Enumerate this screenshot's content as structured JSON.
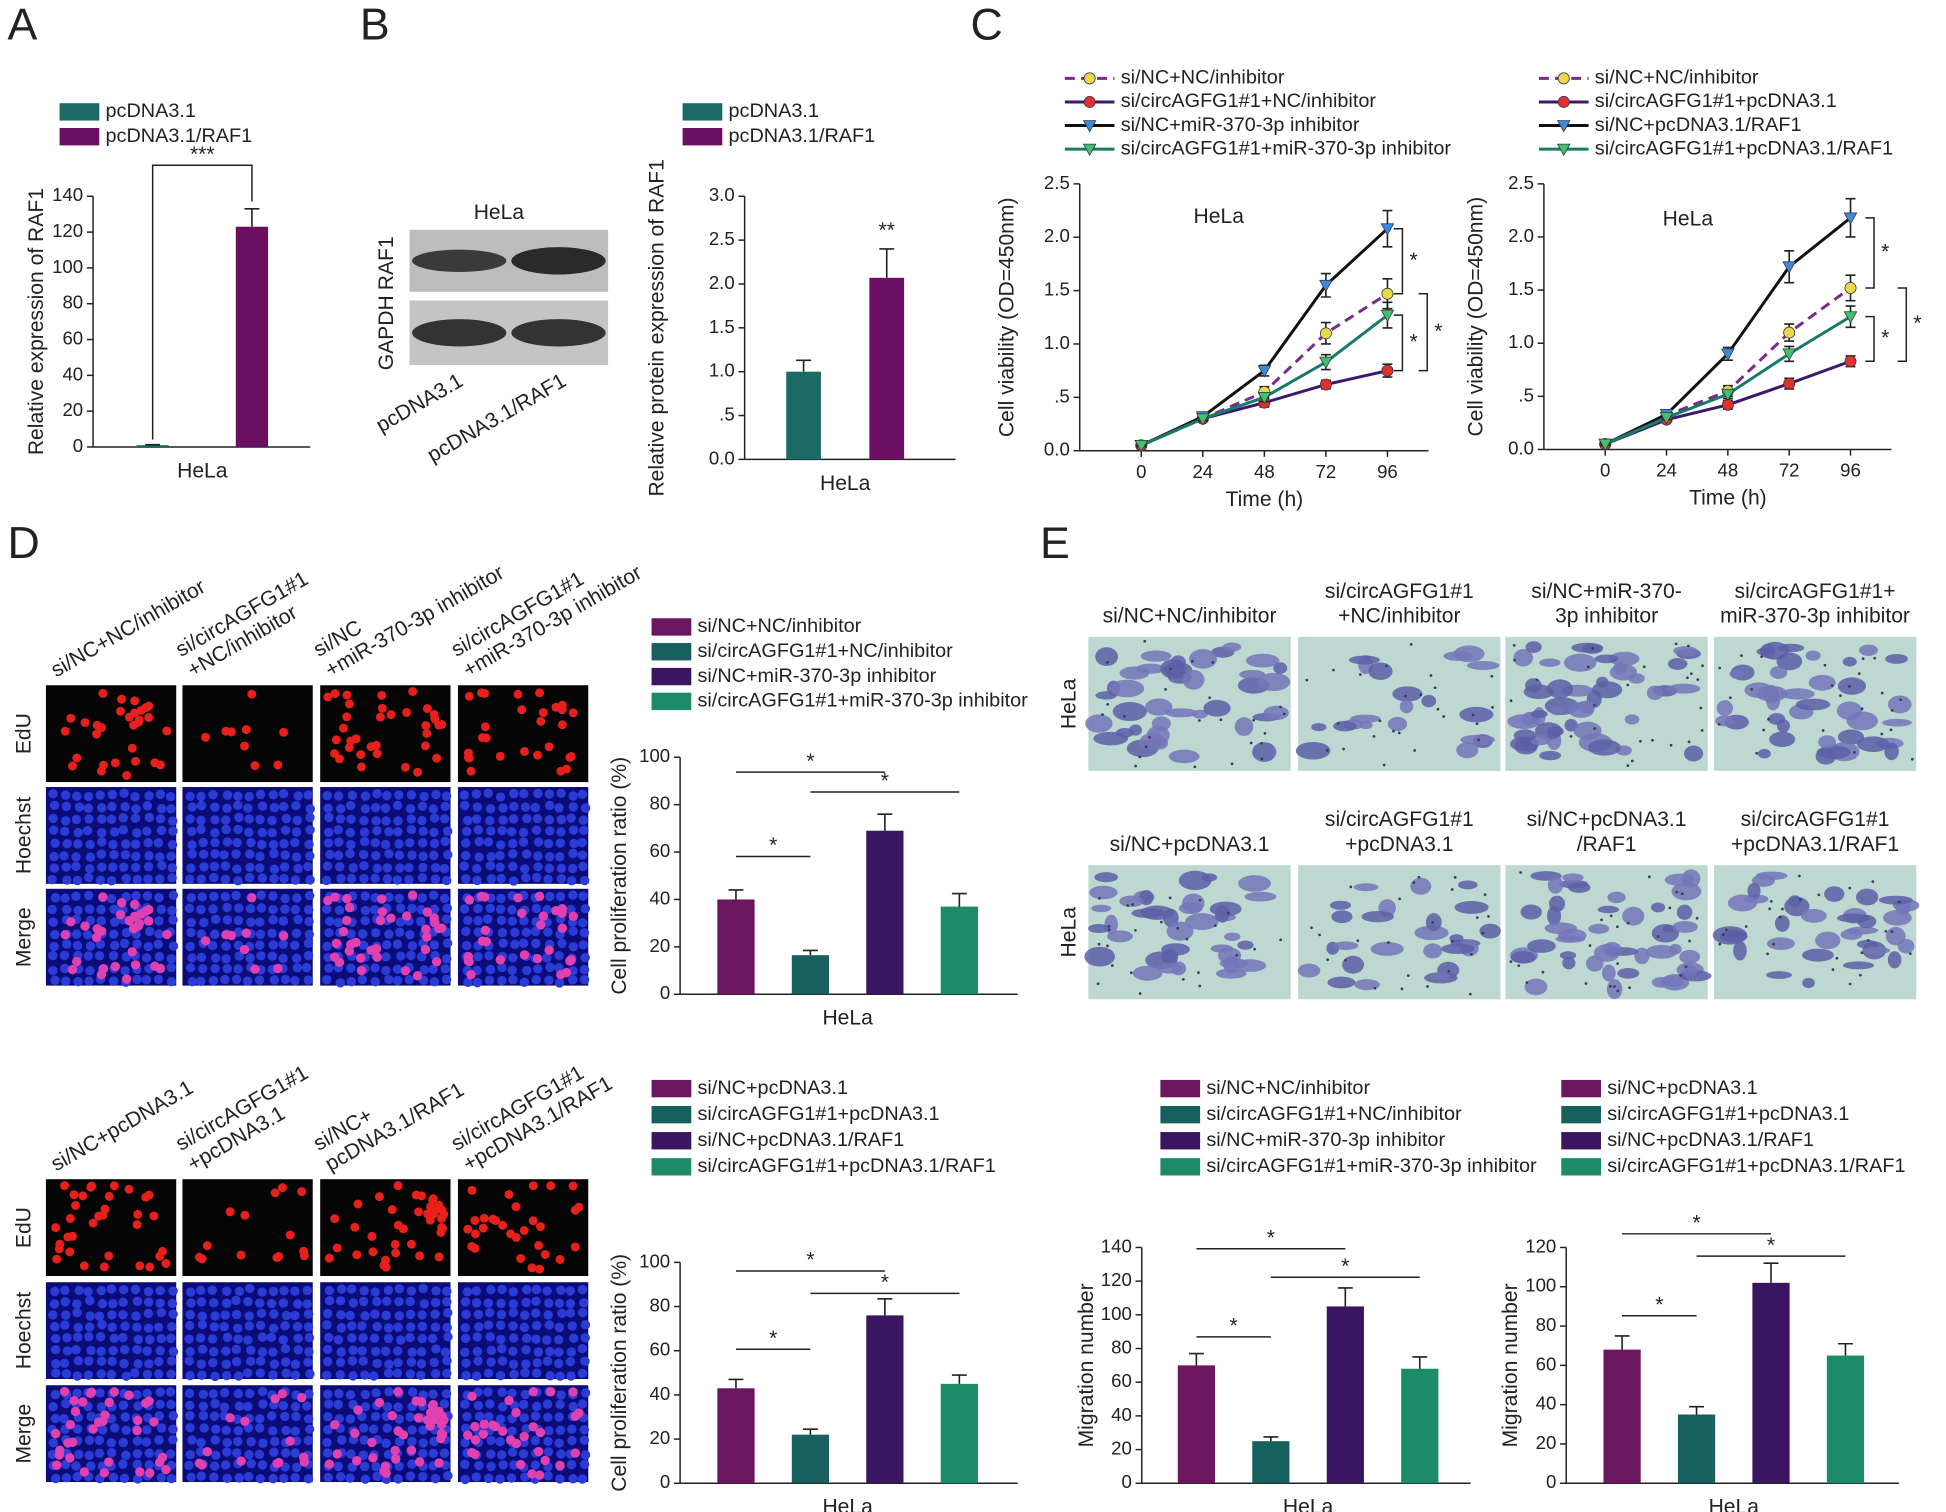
{
  "figure": {
    "panel_labels": [
      "A",
      "B",
      "C",
      "D",
      "E"
    ],
    "blot": {
      "cell_line": "HeLa",
      "rows": [
        "RAF1",
        "GAPDH"
      ],
      "lanes": [
        "pcDNA3.1",
        "pcDNA3.1/RAF1"
      ]
    },
    "edu": {
      "channels": [
        "EdU",
        "Hoechst",
        "Merge"
      ],
      "groups": [
        [
          [
            "si/NC+NC/inhibitor"
          ],
          [
            "si/circAGFG1#1",
            "+NC/inhibitor"
          ],
          [
            "si/NC",
            "+miR-370-3p inhibitor"
          ],
          [
            "si/circAGFG1#1",
            "+miR-370-3p inhibitor"
          ]
        ],
        [
          [
            "si/NC+pcDNA3.1"
          ],
          [
            "si/circAGFG1#1",
            "+pcDNA3.1"
          ],
          [
            "si/NC+",
            "pcDNA3.1/RAF1"
          ],
          [
            "si/circAGFG1#1",
            "+pcDNA3.1/RAF1"
          ]
        ]
      ]
    },
    "transwell": {
      "cell_line": "HeLa",
      "groups": [
        [
          [
            "si/NC+NC/inhibitor"
          ],
          [
            "si/circAGFG1#1",
            "+NC/inhibitor"
          ],
          [
            "si/NC+miR-370-",
            "3p inhibitor"
          ],
          [
            "si/circAGFG1#1+",
            "miR-370-3p inhibitor"
          ]
        ],
        [
          [
            "si/NC+pcDNA3.1"
          ],
          [
            "si/circAGFG1#1",
            "+pcDNA3.1"
          ],
          [
            "si/NC+pcDNA3.1",
            "/RAF1"
          ],
          [
            "si/circAGFG1#1",
            "+pcDNA3.1/RAF1"
          ]
        ]
      ]
    }
  },
  "chart_data": [
    {
      "type": "bar",
      "ylabel": "Relative expression of RAF1",
      "categories": [
        "HeLa"
      ],
      "series": [
        {
          "name": "pcDNA3.1",
          "color": "#1b6a66",
          "values": [
            1
          ],
          "errors": [
            0.3
          ]
        },
        {
          "name": "pcDNA3.1/RAF1",
          "color": "#6b0f62",
          "values": [
            123
          ],
          "errors": [
            10
          ]
        }
      ],
      "ylim": [
        0,
        140
      ],
      "yticks": [
        0,
        20,
        40,
        60,
        80,
        100,
        120,
        140
      ],
      "significance": [
        {
          "pair": [
            0,
            1
          ],
          "label": "***"
        }
      ]
    },
    {
      "type": "bar",
      "ylabel": "Relative protein expression of RAF1",
      "categories": [
        "HeLa"
      ],
      "series": [
        {
          "name": "pcDNA3.1",
          "color": "#1b6a66",
          "values": [
            1.0
          ],
          "errors": [
            0.13
          ]
        },
        {
          "name": "pcDNA3.1/RAF1",
          "color": "#6b0f62",
          "values": [
            2.07
          ],
          "errors": [
            0.33
          ]
        }
      ],
      "ylim": [
        0,
        3
      ],
      "yticks": [
        {
          "value": 0,
          "label": "0.0"
        },
        {
          "value": 0.5,
          "label": ".5"
        },
        {
          "value": 1,
          "label": "1.0"
        },
        1.5,
        {
          "value": 2,
          "label": "2.0"
        },
        2.5,
        {
          "value": 3,
          "label": "3.0"
        }
      ],
      "significance": [
        {
          "series": 1,
          "label": "**"
        }
      ]
    },
    {
      "type": "line",
      "annotation": "HeLa",
      "xlabel": "Time (h)",
      "ylabel": "Cell viability (OD=450nm)",
      "x": [
        0,
        24,
        48,
        72,
        96
      ],
      "xlim": [
        -24,
        112
      ],
      "xticks": [
        0,
        24,
        48,
        72,
        96
      ],
      "ylim": [
        0,
        2.5
      ],
      "yticks": [
        {
          "value": 0,
          "label": "0.0"
        },
        {
          "value": 0.5,
          "label": ".5"
        },
        {
          "value": 1,
          "label": "1.0"
        },
        1.5,
        {
          "value": 2,
          "label": "2.0"
        },
        2.5
      ],
      "series": [
        {
          "name": "si/NC+NC/inhibitor",
          "color": "#7a2a8a",
          "marker_color": "#e8d84a",
          "marker": "circle",
          "dashed": true,
          "values": [
            0.05,
            0.3,
            0.55,
            1.1,
            1.47
          ],
          "errors": [
            0.01,
            0.02,
            0.05,
            0.1,
            0.14
          ]
        },
        {
          "name": "si/circAGFG1#1+NC/inhibitor",
          "color": "#3a1a6e",
          "marker_color": "#e03030",
          "marker": "circle",
          "dashed": false,
          "values": [
            0.05,
            0.3,
            0.45,
            0.62,
            0.75
          ],
          "errors": [
            0.01,
            0.02,
            0.04,
            0.04,
            0.06
          ]
        },
        {
          "name": "si/NC+miR-370-3p inhibitor",
          "color": "#111111",
          "marker_color": "#3a8ae0",
          "marker": "triangle-down",
          "dashed": false,
          "values": [
            0.05,
            0.32,
            0.75,
            1.55,
            2.08
          ],
          "errors": [
            0.01,
            0.02,
            0.05,
            0.11,
            0.17
          ]
        },
        {
          "name": "si/circAGFG1#1+miR-370-3p inhibitor",
          "color": "#1a7a6a",
          "marker_color": "#40c070",
          "marker": "triangle-down",
          "dashed": false,
          "values": [
            0.05,
            0.3,
            0.5,
            0.83,
            1.27
          ],
          "errors": [
            0.01,
            0.02,
            0.04,
            0.07,
            0.12
          ]
        }
      ],
      "significance": [
        {
          "pair": [
            2,
            0
          ],
          "label": "*"
        },
        {
          "pair": [
            3,
            1
          ],
          "label": "*"
        },
        {
          "pair": [
            0,
            1
          ],
          "label": "*"
        }
      ]
    },
    {
      "type": "line",
      "annotation": "HeLa",
      "xlabel": "Time (h)",
      "ylabel": "Cell viability (OD=450nm)",
      "x": [
        0,
        24,
        48,
        72,
        96
      ],
      "xlim": [
        -24,
        112
      ],
      "xticks": [
        0,
        24,
        48,
        72,
        96
      ],
      "ylim": [
        0,
        2.5
      ],
      "yticks": [
        {
          "value": 0,
          "label": "0.0"
        },
        {
          "value": 0.5,
          "label": ".5"
        },
        {
          "value": 1,
          "label": "1.0"
        },
        1.5,
        {
          "value": 2,
          "label": "2.0"
        },
        2.5
      ],
      "series": [
        {
          "name": "si/NC+NC/inhibitor",
          "color": "#7a2a8a",
          "marker_color": "#e8d84a",
          "marker": "circle",
          "dashed": true,
          "values": [
            0.05,
            0.32,
            0.55,
            1.1,
            1.52
          ],
          "errors": [
            0.01,
            0.02,
            0.05,
            0.08,
            0.12
          ]
        },
        {
          "name": "si/circAGFG1#1+pcDNA3.1",
          "color": "#3a1a6e",
          "marker_color": "#e03030",
          "marker": "circle",
          "dashed": false,
          "values": [
            0.05,
            0.28,
            0.42,
            0.62,
            0.83
          ],
          "errors": [
            0.01,
            0.02,
            0.04,
            0.05,
            0.05
          ]
        },
        {
          "name": "si/NC+pcDNA3.1/RAF1",
          "color": "#111111",
          "marker_color": "#3a8ae0",
          "marker": "triangle-down",
          "dashed": false,
          "values": [
            0.05,
            0.33,
            0.9,
            1.72,
            2.18
          ],
          "errors": [
            0.01,
            0.02,
            0.06,
            0.15,
            0.18
          ]
        },
        {
          "name": "si/circAGFG1#1+pcDNA3.1/RAF1",
          "color": "#1a7a6a",
          "marker_color": "#40c070",
          "marker": "triangle-down",
          "dashed": false,
          "values": [
            0.05,
            0.3,
            0.52,
            0.9,
            1.25
          ],
          "errors": [
            0.01,
            0.02,
            0.04,
            0.07,
            0.1
          ]
        }
      ],
      "significance": [
        {
          "pair": [
            2,
            0
          ],
          "label": "*"
        },
        {
          "pair": [
            3,
            1
          ],
          "label": "*"
        },
        {
          "pair": [
            0,
            1
          ],
          "label": "*"
        }
      ]
    },
    {
      "type": "bar",
      "ylabel": "Cell proliferation ratio (%)",
      "categories": [
        "HeLa"
      ],
      "series": [
        {
          "name": "si/NC+NC/inhibitor",
          "color": "#6b175f",
          "values": [
            40
          ],
          "errors": [
            4
          ]
        },
        {
          "name": "si/circAGFG1#1+NC/inhibitor",
          "color": "#17605e",
          "values": [
            16.5
          ],
          "errors": [
            2
          ]
        },
        {
          "name": "si/NC+miR-370-3p inhibitor",
          "color": "#3b1560",
          "values": [
            69
          ],
          "errors": [
            7
          ]
        },
        {
          "name": "si/circAGFG1#1+miR-370-3p inhibitor",
          "color": "#1d8a6a",
          "values": [
            37
          ],
          "errors": [
            5.5
          ]
        }
      ],
      "ylim": [
        0,
        100
      ],
      "yticks": [
        0,
        20,
        40,
        60,
        80,
        100
      ],
      "significance": [
        {
          "pair": [
            0,
            1
          ],
          "label": "*"
        },
        {
          "pair": [
            0,
            2
          ],
          "label": "*"
        },
        {
          "pair": [
            1,
            3
          ],
          "label": "*"
        }
      ]
    },
    {
      "type": "bar",
      "ylabel": "Cell proliferation ratio (%)",
      "categories": [
        "HeLa"
      ],
      "series": [
        {
          "name": "si/NC+pcDNA3.1",
          "color": "#6b175f",
          "values": [
            43
          ],
          "errors": [
            4
          ]
        },
        {
          "name": "si/circAGFG1#1+pcDNA3.1",
          "color": "#17605e",
          "values": [
            22
          ],
          "errors": [
            2.5
          ]
        },
        {
          "name": "si/NC+pcDNA3.1/RAF1",
          "color": "#3b1560",
          "values": [
            76
          ],
          "errors": [
            7.5
          ]
        },
        {
          "name": "si/circAGFG1#1+pcDNA3.1/RAF1",
          "color": "#1d8a6a",
          "values": [
            45
          ],
          "errors": [
            4
          ]
        }
      ],
      "ylim": [
        0,
        100
      ],
      "yticks": [
        0,
        20,
        40,
        60,
        80,
        100
      ],
      "significance": [
        {
          "pair": [
            0,
            1
          ],
          "label": "*"
        },
        {
          "pair": [
            0,
            2
          ],
          "label": "*"
        },
        {
          "pair": [
            1,
            3
          ],
          "label": "*"
        }
      ]
    },
    {
      "type": "bar",
      "ylabel": "Migration number",
      "categories": [
        "HeLa"
      ],
      "series": [
        {
          "name": "si/NC+NC/inhibitor",
          "color": "#6b175f",
          "values": [
            70
          ],
          "errors": [
            7
          ]
        },
        {
          "name": "si/circAGFG1#1+NC/inhibitor",
          "color": "#17605e",
          "values": [
            25
          ],
          "errors": [
            2.5
          ]
        },
        {
          "name": "si/NC+miR-370-3p inhibitor",
          "color": "#3b1560",
          "values": [
            105
          ],
          "errors": [
            11
          ]
        },
        {
          "name": "si/circAGFG1#1+miR-370-3p inhibitor",
          "color": "#1d8a6a",
          "values": [
            68
          ],
          "errors": [
            7
          ]
        }
      ],
      "ylim": [
        0,
        140
      ],
      "yticks": [
        0,
        20,
        40,
        60,
        80,
        100,
        120,
        140
      ],
      "significance": [
        {
          "pair": [
            0,
            1
          ],
          "label": "*"
        },
        {
          "pair": [
            0,
            2
          ],
          "label": "*"
        },
        {
          "pair": [
            1,
            3
          ],
          "label": "*"
        }
      ]
    },
    {
      "type": "bar",
      "ylabel": "Migration number",
      "categories": [
        "HeLa"
      ],
      "series": [
        {
          "name": "si/NC+pcDNA3.1",
          "color": "#6b175f",
          "values": [
            68
          ],
          "errors": [
            7
          ]
        },
        {
          "name": "si/circAGFG1#1+pcDNA3.1",
          "color": "#17605e",
          "values": [
            35
          ],
          "errors": [
            4
          ]
        },
        {
          "name": "si/NC+pcDNA3.1/RAF1",
          "color": "#3b1560",
          "values": [
            102
          ],
          "errors": [
            10
          ]
        },
        {
          "name": "si/circAGFG1#1+pcDNA3.1/RAF1",
          "color": "#1d8a6a",
          "values": [
            65
          ],
          "errors": [
            6
          ]
        }
      ],
      "ylim": [
        0,
        120
      ],
      "yticks": [
        0,
        20,
        40,
        60,
        80,
        100,
        120
      ],
      "significance": [
        {
          "pair": [
            0,
            1
          ],
          "label": "*"
        },
        {
          "pair": [
            0,
            2
          ],
          "label": "*"
        },
        {
          "pair": [
            1,
            3
          ],
          "label": "*"
        }
      ]
    }
  ]
}
